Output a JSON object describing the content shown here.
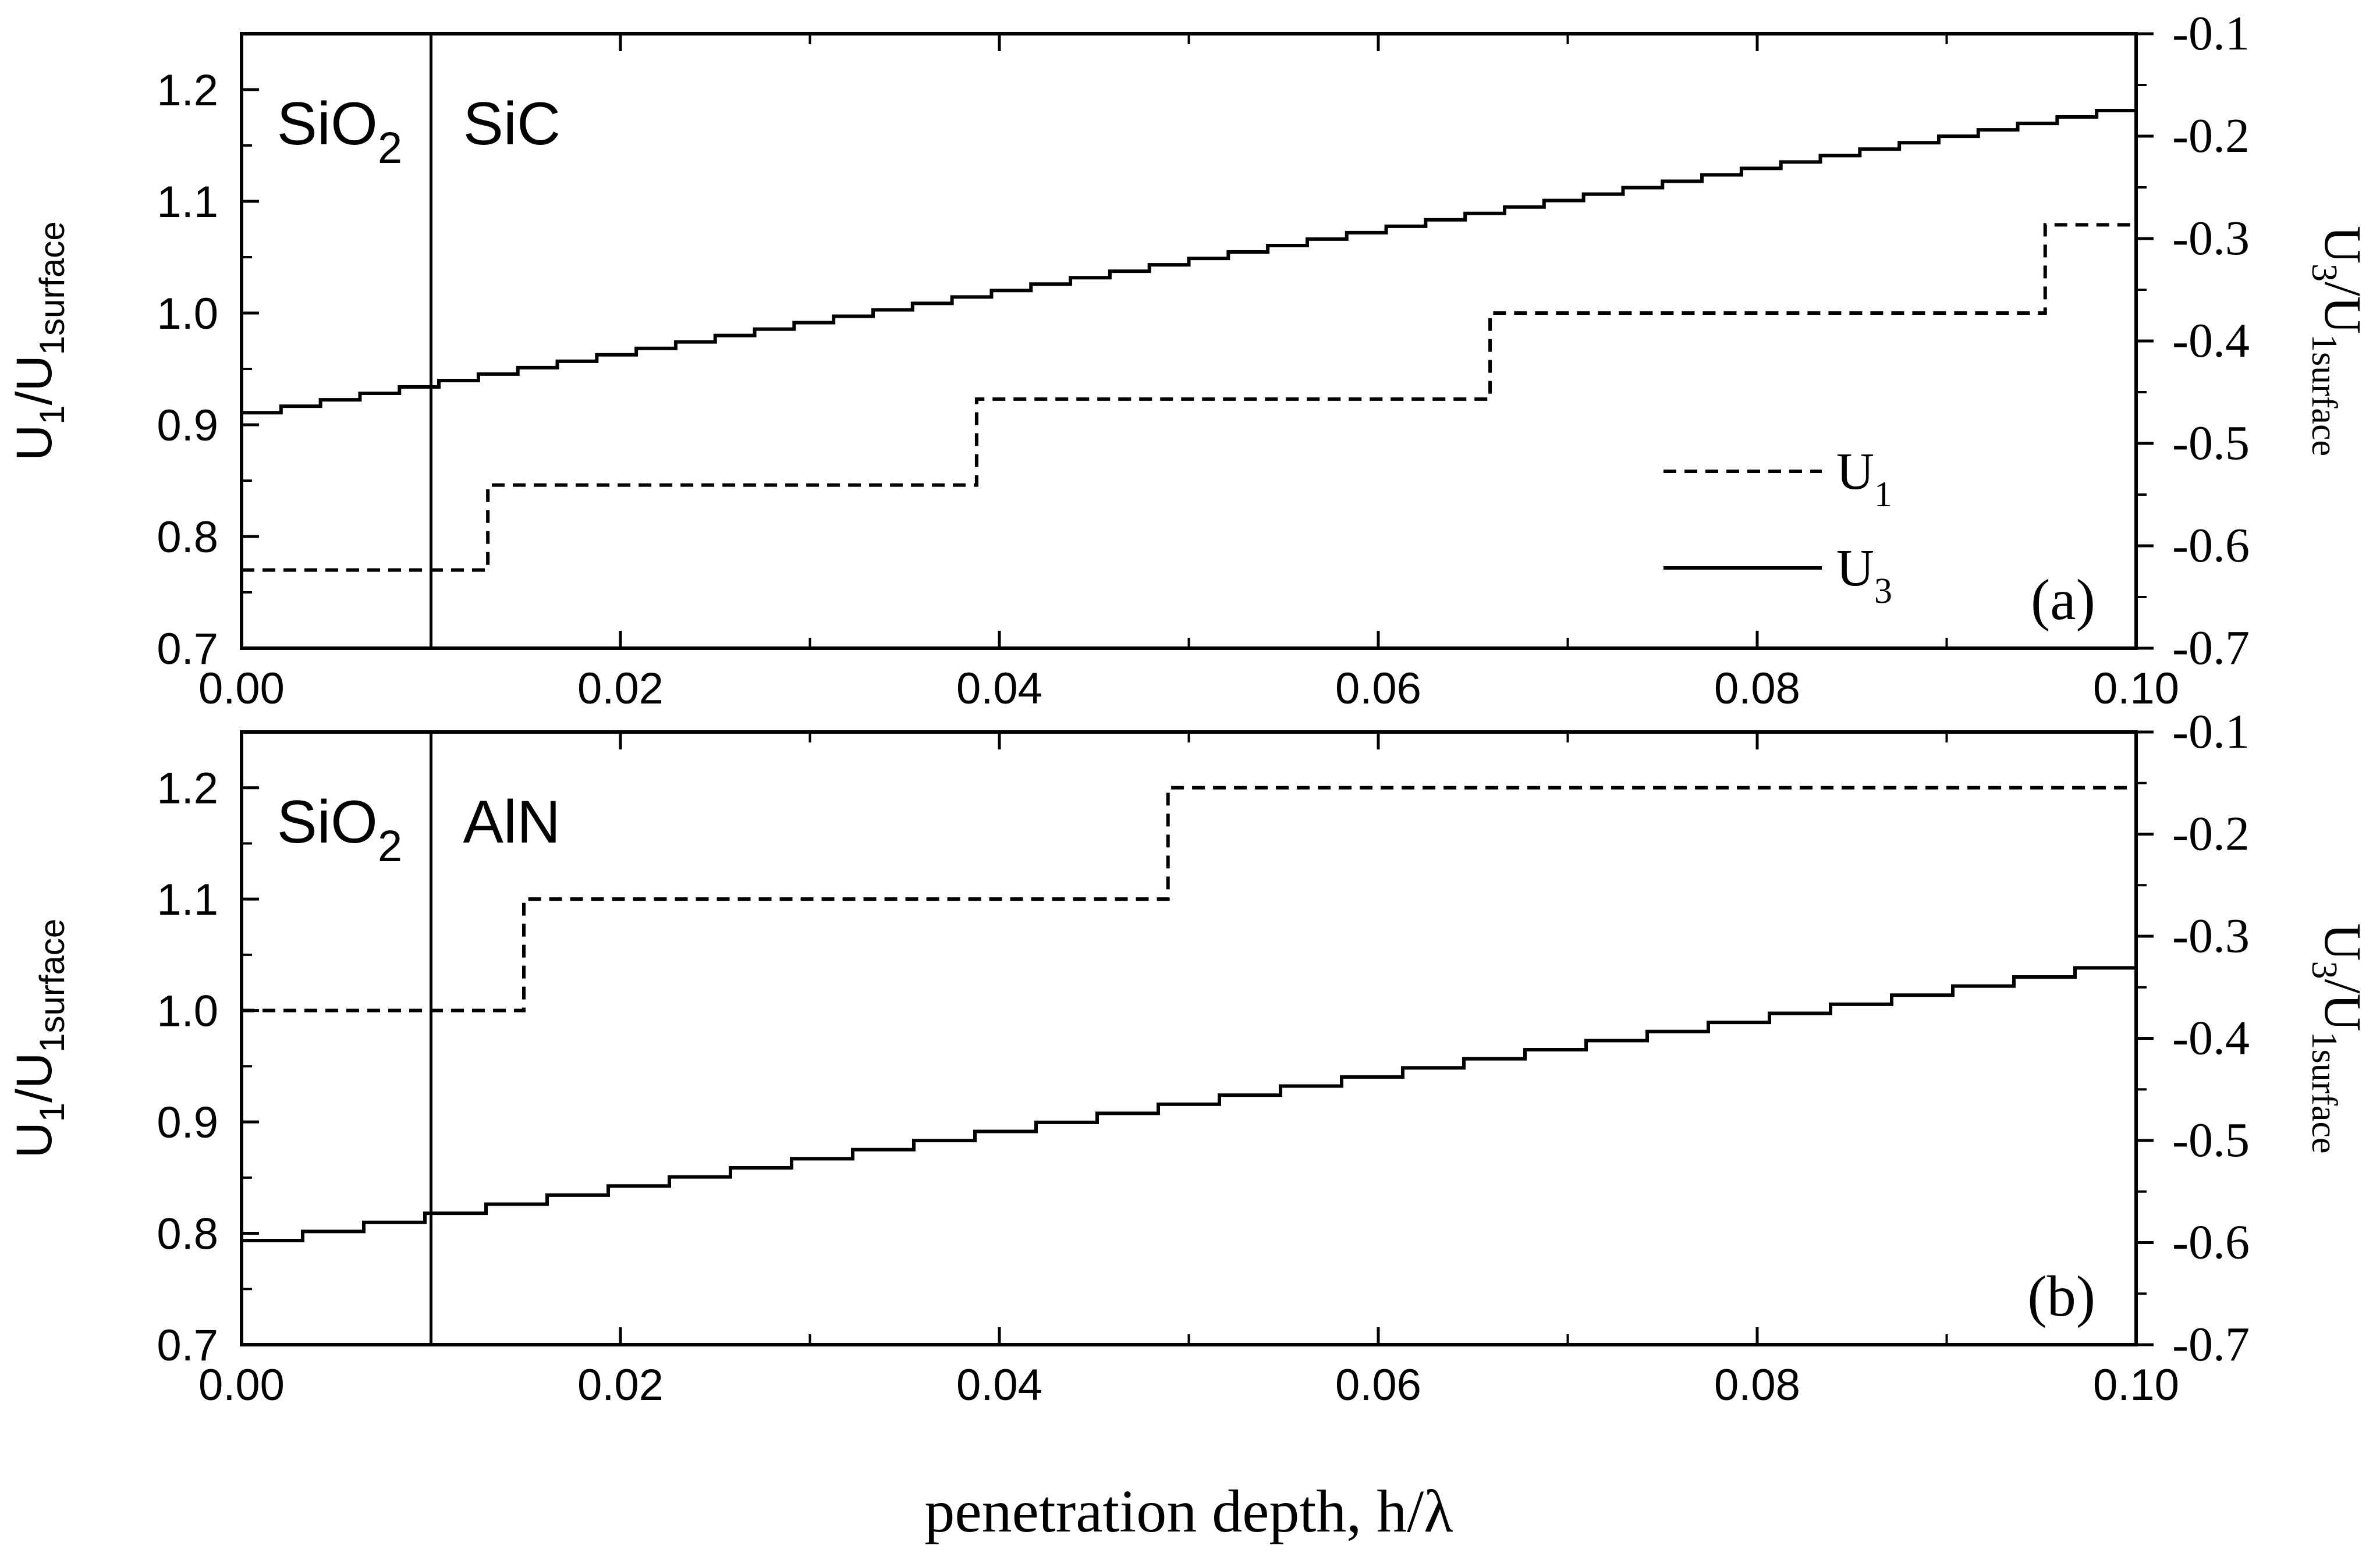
{
  "chart_data": [
    {
      "type": "line",
      "panel_label": "(a)",
      "region_labels": [
        {
          "base": "SiO",
          "sub": "2"
        },
        {
          "base": "SiC",
          "sub": ""
        }
      ],
      "boundary_x": 0.01,
      "xlim": [
        0,
        0.1
      ],
      "ylim": [
        0.7,
        1.25
      ],
      "y2lim": [
        -0.7,
        -0.1
      ],
      "xticks": [
        "0.00",
        "0.02",
        "0.04",
        "0.06",
        "0.08",
        "0.10"
      ],
      "yticks": [
        "0.7",
        "0.8",
        "0.9",
        "1.0",
        "1.1",
        "1.2"
      ],
      "y2ticks": [
        "-0.7",
        "-0.6",
        "-0.5",
        "-0.4",
        "-0.3",
        "-0.2",
        "-0.1"
      ],
      "ylabel": {
        "base": "U",
        "sub1": "1",
        "mid": "/U",
        "sub2": "1surface"
      },
      "y2label": {
        "base": "U",
        "sub1": "3",
        "mid": "/U",
        "sub2": "1surface"
      },
      "legend": {
        "position": "center-right",
        "items": [
          {
            "style": "dashed",
            "base": "U",
            "sub": "1"
          },
          {
            "style": "solid",
            "base": "U",
            "sub": "3"
          }
        ]
      },
      "series": [
        {
          "name": "U1",
          "axis": "left",
          "style": "dashed",
          "steps": [
            {
              "x": 0.0,
              "y": 0.77
            },
            {
              "x": 0.013,
              "y": 0.846
            },
            {
              "x": 0.0388,
              "y": 0.923
            },
            {
              "x": 0.0659,
              "y": 1.0
            },
            {
              "x": 0.0952,
              "y": 1.079
            }
          ],
          "x_end": 0.1
        },
        {
          "name": "U3",
          "axis": "right",
          "style": "solid",
          "start": {
            "x": 0.0,
            "y": -0.47
          },
          "end": {
            "x": 0.1,
            "y": -0.175
          },
          "step_count": 48
        }
      ]
    },
    {
      "type": "line",
      "panel_label": "(b)",
      "region_labels": [
        {
          "base": "SiO",
          "sub": "2"
        },
        {
          "base": "AlN",
          "sub": ""
        }
      ],
      "boundary_x": 0.01,
      "xlim": [
        0,
        0.1
      ],
      "ylim": [
        0.7,
        1.25
      ],
      "y2lim": [
        -0.7,
        -0.1
      ],
      "xticks": [
        "0.00",
        "0.02",
        "0.04",
        "0.06",
        "0.08",
        "0.10"
      ],
      "yticks": [
        "0.7",
        "0.8",
        "0.9",
        "1.0",
        "1.1",
        "1.2"
      ],
      "y2ticks": [
        "-0.7",
        "-0.6",
        "-0.5",
        "-0.4",
        "-0.3",
        "-0.2",
        "-0.1"
      ],
      "ylabel": {
        "base": "U",
        "sub1": "1",
        "mid": "/U",
        "sub2": "1surface"
      },
      "y2label": {
        "base": "U",
        "sub1": "3",
        "mid": "/U",
        "sub2": "1surface"
      },
      "series": [
        {
          "name": "U1",
          "axis": "left",
          "style": "dashed",
          "steps": [
            {
              "x": 0.0,
              "y": 1.0
            },
            {
              "x": 0.0149,
              "y": 1.1
            },
            {
              "x": 0.0489,
              "y": 1.2
            }
          ],
          "x_end": 0.1
        },
        {
          "name": "U3",
          "axis": "right",
          "style": "solid",
          "start": {
            "x": 0.0,
            "y": -0.598
          },
          "end": {
            "x": 0.1,
            "y": -0.331
          },
          "step_count": 31
        }
      ]
    }
  ],
  "xlabel": "penetration depth, h/λ"
}
